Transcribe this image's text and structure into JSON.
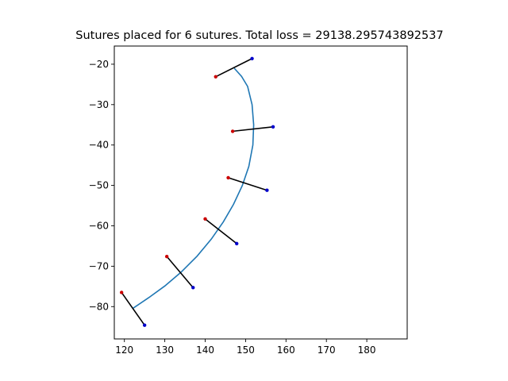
{
  "chart_data": {
    "type": "line",
    "title": "Sutures placed for 6 sutures. Total loss = 29138.295743892537",
    "xlabel": "",
    "ylabel": "",
    "xlim": [
      117.5,
      190
    ],
    "ylim": [
      -88,
      -15.5
    ],
    "xticks": [
      120,
      130,
      140,
      150,
      160,
      170,
      180
    ],
    "yticks": [
      -20,
      -30,
      -40,
      -50,
      -60,
      -70,
      -80
    ],
    "grid": false,
    "legend": "none",
    "wound_curve": {
      "color": "#1f77b4",
      "x": [
        122.0,
        126.0,
        130.0,
        134.0,
        138.0,
        141.5,
        144.5,
        147.0,
        149.2,
        150.8,
        151.8,
        152.0,
        151.6,
        150.5,
        149.0,
        147.2
      ],
      "y": [
        -80.5,
        -77.8,
        -74.9,
        -71.5,
        -67.5,
        -63.3,
        -59.0,
        -54.7,
        -50.0,
        -45.3,
        -40.0,
        -35.0,
        -30.0,
        -25.5,
        -23.0,
        -21.0
      ]
    },
    "sutures": [
      {
        "start": [
          119.3,
          -76.5
        ],
        "end": [
          125.0,
          -84.6
        ]
      },
      {
        "start": [
          130.5,
          -67.6
        ],
        "end": [
          137.0,
          -75.3
        ]
      },
      {
        "start": [
          140.0,
          -58.3
        ],
        "end": [
          147.8,
          -64.4
        ]
      },
      {
        "start": [
          145.7,
          -48.1
        ],
        "end": [
          155.3,
          -51.2
        ]
      },
      {
        "start": [
          146.8,
          -36.6
        ],
        "end": [
          156.8,
          -35.5
        ]
      },
      {
        "start": [
          142.6,
          -23.1
        ],
        "end": [
          151.6,
          -18.6
        ]
      }
    ],
    "colors": {
      "curve": "#1f77b4",
      "suture_line": "#000000",
      "start_point": "#cc0000",
      "end_point": "#0000cc"
    }
  }
}
